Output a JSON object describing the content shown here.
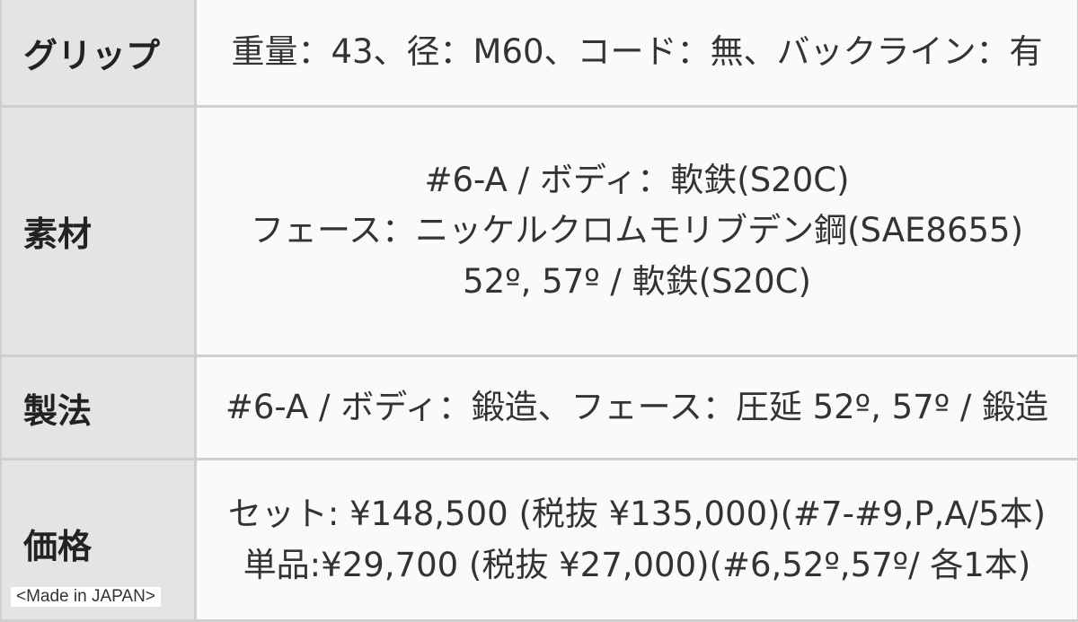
{
  "rows": [
    {
      "label": "グリップ",
      "lines": [
        "重量：43、径：M60、コード：無、バックライン：有"
      ]
    },
    {
      "label": "素材",
      "lines": [
        "#6-A / ボディ：軟鉄(S20C)",
        "フェース：ニッケルクロムモリブデン鋼(SAE8655)",
        "52º, 57º / 軟鉄(S20C)"
      ]
    },
    {
      "label": "製法",
      "lines": [
        "#6-A / ボディ：鍛造、フェース：圧延 52º, 57º / 鍛造"
      ]
    },
    {
      "label": "価格",
      "lines": [
        "セット: ¥148,500 (税抜 ¥135,000)(#7-#9,P,A/5本)",
        "単品:¥29,700 (税抜 ¥27,000)(#6,52º,57º/ 各1本)"
      ]
    }
  ],
  "made_in": "<Made in JAPAN>"
}
